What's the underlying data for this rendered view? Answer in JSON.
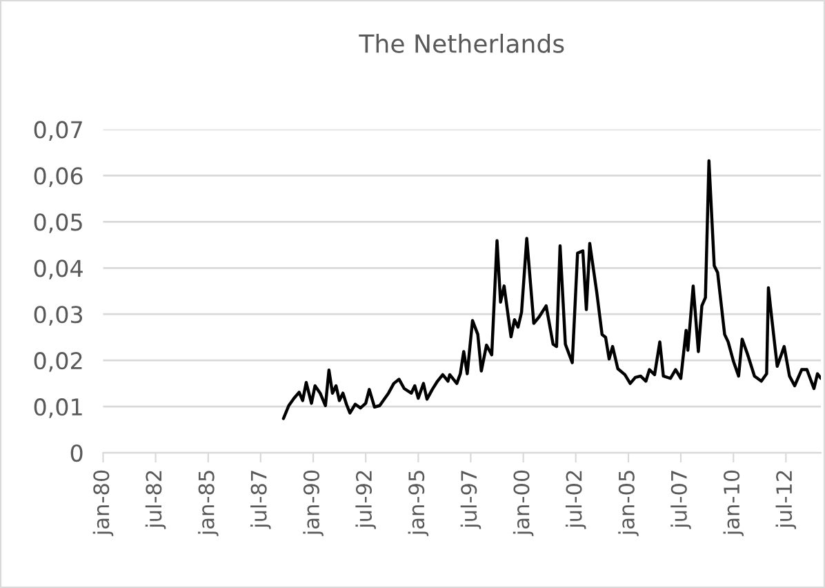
{
  "chart_data": {
    "type": "line",
    "title": "The Netherlands",
    "x": [
      "1988-08",
      "1988-11",
      "1989-02",
      "1989-05",
      "1989-07",
      "1989-09",
      "1989-12",
      "1990-02",
      "1990-05",
      "1990-08",
      "1990-10",
      "1990-12",
      "1991-02",
      "1991-04",
      "1991-06",
      "1991-08",
      "1991-10",
      "1992-01",
      "1992-04",
      "1992-07",
      "1992-09",
      "1992-12",
      "1993-03",
      "1993-05",
      "1993-08",
      "1993-11",
      "1994-02",
      "1994-05",
      "1994-09",
      "1994-11",
      "1995-01",
      "1995-04",
      "1995-06",
      "1995-09",
      "1995-12",
      "1996-03",
      "1996-06",
      "1996-07",
      "1996-11",
      "1997-01",
      "1997-03",
      "1997-05",
      "1997-08",
      "1997-11",
      "1998-01",
      "1998-04",
      "1998-07",
      "1998-10",
      "1998-12",
      "1999-02",
      "1999-06",
      "1999-08",
      "1999-10",
      "1999-12",
      "2000-03",
      "2000-07",
      "2000-10",
      "2001-02",
      "2001-06",
      "2001-08",
      "2001-10",
      "2002-01",
      "2002-05",
      "2002-08",
      "2002-11",
      "2003-01",
      "2003-03",
      "2003-07",
      "2003-10",
      "2003-12",
      "2004-02",
      "2004-04",
      "2004-07",
      "2004-11",
      "2005-02",
      "2005-05",
      "2005-08",
      "2005-11",
      "2006-01",
      "2006-04",
      "2006-07",
      "2006-09",
      "2007-01",
      "2007-04",
      "2007-07",
      "2007-10",
      "2007-11",
      "2008-02",
      "2008-05",
      "2008-07",
      "2008-09",
      "2008-11",
      "2009-02",
      "2009-04",
      "2009-08",
      "2009-10",
      "2010-01",
      "2010-04",
      "2010-06",
      "2010-09",
      "2011-01",
      "2011-05",
      "2011-08",
      "2011-09",
      "2011-11",
      "2012-02",
      "2012-06",
      "2012-09",
      "2012-12",
      "2013-04",
      "2013-07",
      "2013-11",
      "2014-01",
      "2014-03"
    ],
    "series": [
      {
        "color": "#000000",
        "values": [
          0.0074,
          0.0102,
          0.0118,
          0.0131,
          0.0113,
          0.0152,
          0.0107,
          0.0145,
          0.0129,
          0.0102,
          0.0179,
          0.0129,
          0.0145,
          0.0113,
          0.0129,
          0.0105,
          0.0086,
          0.0105,
          0.0097,
          0.0107,
          0.0137,
          0.0099,
          0.0102,
          0.0113,
          0.0129,
          0.015,
          0.0159,
          0.0139,
          0.0129,
          0.0145,
          0.0118,
          0.015,
          0.0116,
          0.0137,
          0.0155,
          0.0169,
          0.0155,
          0.0169,
          0.015,
          0.0171,
          0.0219,
          0.0171,
          0.0286,
          0.0256,
          0.0177,
          0.0233,
          0.0212,
          0.0459,
          0.0326,
          0.0361,
          0.0251,
          0.0288,
          0.0272,
          0.0304,
          0.0464,
          0.028,
          0.0294,
          0.0318,
          0.0235,
          0.023,
          0.0448,
          0.0235,
          0.0195,
          0.0432,
          0.0437,
          0.031,
          0.0453,
          0.0347,
          0.0256,
          0.025,
          0.0203,
          0.023,
          0.0182,
          0.0169,
          0.015,
          0.0163,
          0.0166,
          0.0155,
          0.018,
          0.0169,
          0.024,
          0.0166,
          0.0161,
          0.018,
          0.0161,
          0.0265,
          0.0222,
          0.0361,
          0.0219,
          0.0318,
          0.0336,
          0.0632,
          0.0405,
          0.039,
          0.0256,
          0.024,
          0.0198,
          0.0166,
          0.0246,
          0.0214,
          0.0166,
          0.0155,
          0.0171,
          0.0357,
          0.0288,
          0.0187,
          0.023,
          0.0166,
          0.0145,
          0.018,
          0.018,
          0.0139,
          0.0171,
          0.0161
        ]
      }
    ],
    "xlim": [
      "1980-01",
      "2014-03"
    ],
    "xticks": [
      {
        "value": "1980-01",
        "label": "jan-80"
      },
      {
        "value": "1982-07",
        "label": "jul-82"
      },
      {
        "value": "1985-01",
        "label": "jan-85"
      },
      {
        "value": "1987-07",
        "label": "jul-87"
      },
      {
        "value": "1990-01",
        "label": "jan-90"
      },
      {
        "value": "1992-07",
        "label": "jul-92"
      },
      {
        "value": "1995-01",
        "label": "jan-95"
      },
      {
        "value": "1997-07",
        "label": "jul-97"
      },
      {
        "value": "2000-01",
        "label": "jan-00"
      },
      {
        "value": "2002-07",
        "label": "jul-02"
      },
      {
        "value": "2005-01",
        "label": "jan-05"
      },
      {
        "value": "2007-07",
        "label": "jul-07"
      },
      {
        "value": "2010-01",
        "label": "jan-10"
      },
      {
        "value": "2012-07",
        "label": "jul-12"
      }
    ],
    "ylim": [
      0,
      0.07
    ],
    "yticks": [
      0,
      {
        "value": 0.01,
        "label": "0,01"
      },
      {
        "value": 0.02,
        "label": "0,02"
      },
      {
        "value": 0.03,
        "label": "0,03"
      },
      {
        "value": 0.04,
        "label": "0,04"
      },
      {
        "value": 0.05,
        "label": "0,05"
      },
      {
        "value": 0.06,
        "label": "0,06"
      },
      {
        "value": 0.07,
        "label": "0,07"
      }
    ],
    "grid": "y",
    "legend": false,
    "marker": "none",
    "line_style": "solid"
  }
}
